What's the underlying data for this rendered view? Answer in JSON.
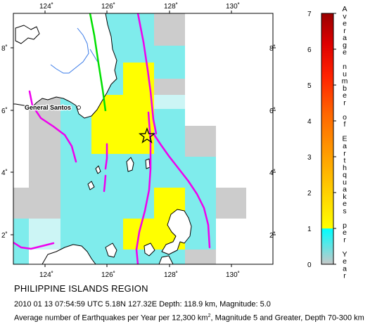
{
  "map": {
    "lon_ticks": [
      "124˚",
      "126˚",
      "128˚",
      "130˚"
    ],
    "lat_ticks": [
      "2˚",
      "4˚",
      "6˚",
      "8˚"
    ],
    "city_label": "General Santos",
    "epicenter_icon": "star-icon",
    "colors": {
      "land": "#ffffff",
      "no_data": "#cccccc",
      "low_rate": "#ccf5f5",
      "mid_rate": "#7fecec",
      "rate_1_2": "#ffff00",
      "trench": "#ee00ee",
      "fault": "#00e000",
      "river": "#3a7be8",
      "coastline": "#000000"
    }
  },
  "colorbar": {
    "ticks": [
      "0",
      "1",
      "2",
      "3",
      "4",
      "5",
      "6",
      "7"
    ],
    "title": "Average number of Earthquakes per Year",
    "stops": [
      "#c8c8c8",
      "#00ffff",
      "#ffff00",
      "#ffaa00",
      "#ff5500",
      "#ff0000",
      "#cc0000",
      "#990000"
    ]
  },
  "caption": {
    "region": "PHILIPPINE ISLANDS REGION",
    "event": "2010 01 13 07:54:59 UTC 5.18N 127.32E Depth: 118.9 km, Magnitude: 5.0",
    "legend_prefix": "Average number of Earthquakes per Year per 12,300 km",
    "legend_sup": "2",
    "legend_suffix": ", Magnitude 5 and Greater, Depth 70-300 km"
  }
}
